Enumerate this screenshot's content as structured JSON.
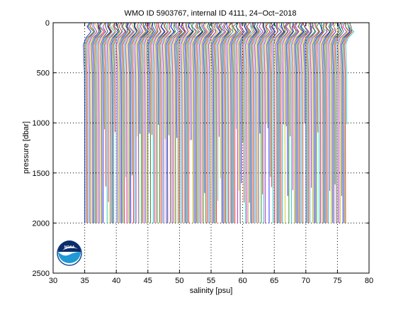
{
  "chart_data": {
    "type": "line",
    "title": "WMO ID 5903767, internal ID 4111, 24−Oct−2018",
    "xlabel": "salinity [psu]",
    "ylabel": "pressure [dbar]",
    "xlim": [
      30,
      80
    ],
    "ylim": [
      0,
      2500
    ],
    "y_reversed": true,
    "xticks": [
      30,
      35,
      40,
      45,
      50,
      55,
      60,
      65,
      70,
      75,
      80
    ],
    "yticks": [
      0,
      500,
      1000,
      1500,
      2000,
      2500
    ],
    "grid": "dotted",
    "description_series": "Waterfall of salinity profiles; each successive profile offset by roughly 0.2 psu",
    "profile_count": 200,
    "first_profile_salinity": 35.0,
    "last_profile_salinity": 76.5,
    "profile_depths_dbar": [
      2000,
      1500,
      1000
    ],
    "colors": [
      "#0000ff",
      "#008000",
      "#ff0000",
      "#00bfbf",
      "#bf00bf",
      "#bfbf00",
      "#404040"
    ]
  },
  "logo": {
    "name": "noaa-logo",
    "text": "NOAA"
  }
}
